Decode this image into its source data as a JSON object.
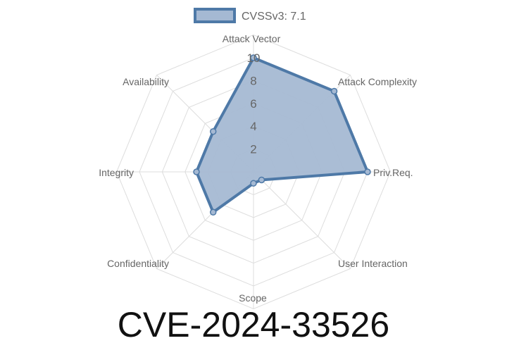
{
  "chart_data": {
    "type": "radar",
    "title": "CVE-2024-33526",
    "axes": [
      "Attack Vector",
      "Attack Complexity",
      "Priv.Req.",
      "User Interaction",
      "Scope",
      "Confidentiality",
      "Integrity",
      "Availability"
    ],
    "series": [
      {
        "name": "CVSSv3: 7.1",
        "values": [
          10,
          10,
          10,
          1,
          1,
          5,
          5,
          5
        ]
      }
    ],
    "rlim": [
      0,
      10
    ],
    "ticks": [
      "2",
      "4",
      "6",
      "8",
      "10"
    ],
    "grid": true,
    "legend": "top",
    "colors": {
      "fill": "#a5b9d3",
      "stroke": "#4e79a7",
      "grid": "#dddddd"
    }
  }
}
